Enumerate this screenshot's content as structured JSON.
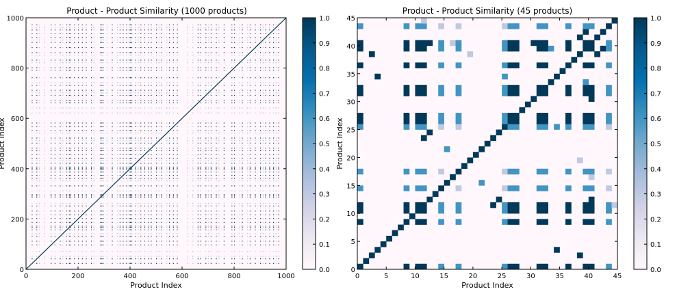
{
  "chart_data": [
    {
      "type": "heatmap",
      "title": "Product - Product Similarity (1000 products)",
      "xlabel": "Product Index",
      "ylabel": "Product Index",
      "xlim": [
        0,
        1000
      ],
      "ylim": [
        0,
        1000
      ],
      "x_ticks": [
        "0",
        "200",
        "400",
        "600",
        "800",
        "1000"
      ],
      "y_ticks": [
        "0",
        "200",
        "400",
        "600",
        "800",
        "1000"
      ],
      "x_tick_values": [
        0,
        200,
        400,
        600,
        800,
        1000
      ],
      "y_tick_values": [
        0,
        200,
        400,
        600,
        800,
        1000
      ],
      "colorscale": "PuBu",
      "colorbar": {
        "min": 0.0,
        "max": 1.0,
        "ticks": [
          "0.0",
          "0.1",
          "0.2",
          "0.3",
          "0.4",
          "0.5",
          "0.6",
          "0.7",
          "0.8",
          "0.9",
          "1.0"
        ]
      },
      "diagonal_value": 1.0,
      "similar_product_indices": [
        22,
        40,
        95,
        110,
        130,
        155,
        165,
        170,
        185,
        200,
        215,
        230,
        250,
        285,
        290,
        295,
        330,
        360,
        372,
        385,
        395,
        400,
        405,
        420,
        440,
        455,
        470,
        480,
        500,
        520,
        550,
        565,
        580,
        660,
        670,
        690,
        710,
        730,
        760,
        790,
        800,
        830,
        860,
        880,
        900,
        920,
        935,
        950,
        970
      ],
      "mid_similarity_indices": [
        50,
        70,
        140,
        260,
        310,
        350,
        430,
        510,
        540,
        620,
        640,
        700,
        740,
        820,
        850,
        910,
        960
      ],
      "strong_value": 1.0,
      "mid_value": 0.35
    },
    {
      "type": "heatmap",
      "title": "Product - Product Similarity (45 products)",
      "xlabel": "Product Index",
      "ylabel": "Product Index",
      "xlim": [
        0,
        45
      ],
      "ylim": [
        0,
        45
      ],
      "x_ticks": [
        "0",
        "5",
        "10",
        "15",
        "20",
        "25",
        "30",
        "35",
        "40",
        "45"
      ],
      "y_ticks": [
        "0",
        "5",
        "10",
        "15",
        "20",
        "25",
        "30",
        "35",
        "40",
        "45"
      ],
      "x_tick_values": [
        0,
        5,
        10,
        15,
        20,
        25,
        30,
        35,
        40,
        45
      ],
      "y_tick_values": [
        0,
        5,
        10,
        15,
        20,
        25,
        30,
        35,
        40,
        45
      ],
      "colorscale": "PuBu",
      "colorbar": {
        "min": 0.0,
        "max": 1.0,
        "ticks": [
          "0.0",
          "0.1",
          "0.2",
          "0.3",
          "0.4",
          "0.5",
          "0.6",
          "0.7",
          "0.8",
          "0.9",
          "1.0"
        ]
      },
      "size": 45,
      "diagonal_value": 1.0,
      "cluster": [
        0,
        8,
        10,
        11,
        14,
        17,
        25,
        26,
        27,
        31,
        32,
        36,
        39,
        40,
        43
      ],
      "strong_members": [
        0,
        8,
        10,
        11,
        26,
        27,
        31,
        32,
        36,
        39,
        40
      ],
      "mid_members": [
        14,
        17,
        25,
        43
      ],
      "strong_value": 1.0,
      "mid_value": 0.6,
      "weak_value": 0.3,
      "extra_cells": [
        {
          "x": 2,
          "y": 38,
          "v": 1.0
        },
        {
          "x": 38,
          "y": 2,
          "v": 1.0
        },
        {
          "x": 3,
          "y": 34,
          "v": 1.0
        },
        {
          "x": 34,
          "y": 3,
          "v": 1.0
        },
        {
          "x": 12,
          "y": 24,
          "v": 1.0
        },
        {
          "x": 24,
          "y": 12,
          "v": 1.0
        },
        {
          "x": 30,
          "y": 40,
          "v": 1.0
        },
        {
          "x": 40,
          "y": 30,
          "v": 1.0
        },
        {
          "x": 34,
          "y": 25,
          "v": 0.6
        },
        {
          "x": 25,
          "y": 34,
          "v": 0.6
        },
        {
          "x": 38,
          "y": 41,
          "v": 1.0
        },
        {
          "x": 41,
          "y": 38,
          "v": 1.0
        },
        {
          "x": 42,
          "y": 39,
          "v": 1.0
        },
        {
          "x": 39,
          "y": 42,
          "v": 1.0
        },
        {
          "x": 12,
          "y": 40,
          "v": 1.0
        },
        {
          "x": 40,
          "y": 12,
          "v": 1.0
        },
        {
          "x": 16,
          "y": 40,
          "v": 0.3
        },
        {
          "x": 40,
          "y": 16,
          "v": 0.3
        },
        {
          "x": 33,
          "y": 39,
          "v": 0.6
        },
        {
          "x": 39,
          "y": 33,
          "v": 0.6
        },
        {
          "x": 11,
          "y": 44,
          "v": 0.3
        },
        {
          "x": 44,
          "y": 11,
          "v": 0.3
        },
        {
          "x": 23,
          "y": 11,
          "v": 1.0
        },
        {
          "x": 11,
          "y": 23,
          "v": 1.0
        },
        {
          "x": 21,
          "y": 15,
          "v": 0.6
        },
        {
          "x": 15,
          "y": 21,
          "v": 0.6
        },
        {
          "x": 38,
          "y": 19,
          "v": 0.3
        },
        {
          "x": 19,
          "y": 38,
          "v": 0.3
        }
      ]
    }
  ]
}
